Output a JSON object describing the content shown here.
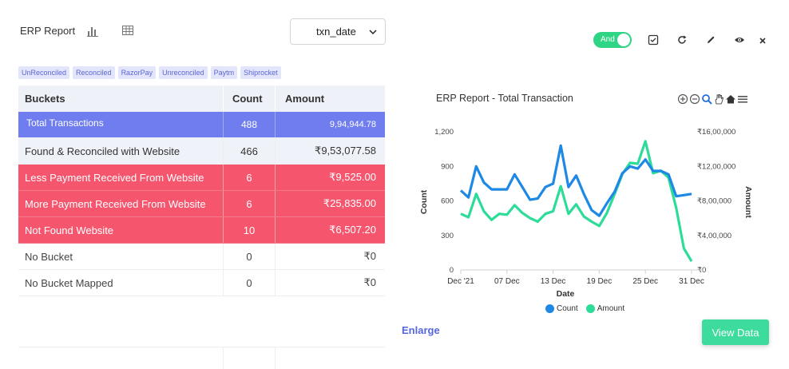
{
  "header": {
    "title": "ERP Report",
    "select_value": "txn_date"
  },
  "tags": [
    "UnReconciled",
    "Reconciled",
    "RazorPay",
    "Unreconciled",
    "Paytm",
    "Shiprocket"
  ],
  "table": {
    "headers": [
      "Buckets",
      "Count",
      "Amount"
    ],
    "rows": [
      {
        "bucket": "Total  Transactions",
        "count": "488",
        "amount": "9,94,944.78",
        "style": "total"
      },
      {
        "bucket": "Found & Reconciled with Website",
        "count": "466",
        "amount": "₹9,53,077.58",
        "style": "light"
      },
      {
        "bucket": "Less Payment Received From Website",
        "count": "6",
        "amount": "₹9,525.00",
        "style": "red"
      },
      {
        "bucket": "More Payment Received From Website",
        "count": "6",
        "amount": "₹25,835.00",
        "style": "red"
      },
      {
        "bucket": "Not Found Website",
        "count": "10",
        "amount": "₹6,507.20",
        "style": "red"
      },
      {
        "bucket": "No Bucket",
        "count": "0",
        "amount": "₹0",
        "style": "plain"
      },
      {
        "bucket": "No Bucket Mapped",
        "count": "0",
        "amount": "₹0",
        "style": "plain"
      }
    ]
  },
  "actions": {
    "enlarge": "Enlarge",
    "view_data": "View Data"
  },
  "toolbar": {
    "toggle_label": "And"
  },
  "colors": {
    "count": "#1e88e5",
    "amount": "#2ddc98",
    "total_row": "#6f7dee",
    "red_row": "#f5566e"
  },
  "chart_data": {
    "type": "line",
    "title": "ERP Report - Total Transaction",
    "xlabel": "Date",
    "ylabel": "Count",
    "y2label": "Amount",
    "x_ticks": [
      "Dec '21",
      "07 Dec",
      "13 Dec",
      "19 Dec",
      "25 Dec",
      "31 Dec"
    ],
    "y_ticks": [
      "0",
      "300",
      "600",
      "900",
      "1,200"
    ],
    "y2_ticks": [
      "₹0",
      "₹4,00,000",
      "₹8,00,000",
      "₹12,00,000",
      "₹16,00,000"
    ],
    "ylim": [
      0,
      1200
    ],
    "y2lim": [
      0,
      1600000
    ],
    "days": [
      "01 Dec",
      "02 Dec",
      "03 Dec",
      "04 Dec",
      "05 Dec",
      "06 Dec",
      "07 Dec",
      "08 Dec",
      "09 Dec",
      "10 Dec",
      "11 Dec",
      "12 Dec",
      "13 Dec",
      "14 Dec",
      "15 Dec",
      "16 Dec",
      "17 Dec",
      "18 Dec",
      "19 Dec",
      "20 Dec",
      "21 Dec",
      "22 Dec",
      "23 Dec",
      "24 Dec",
      "25 Dec",
      "26 Dec",
      "27 Dec",
      "28 Dec",
      "29 Dec",
      "30 Dec",
      "31 Dec"
    ],
    "series": [
      {
        "name": "Count",
        "axis": "left",
        "values": [
          690,
          630,
          900,
          760,
          700,
          700,
          700,
          830,
          720,
          610,
          620,
          720,
          750,
          1080,
          720,
          820,
          660,
          520,
          470,
          580,
          680,
          840,
          900,
          880,
          960,
          860,
          860,
          830,
          640,
          650,
          660
        ]
      },
      {
        "name": "Amount",
        "axis": "right",
        "values": [
          650000,
          610000,
          880000,
          680000,
          580000,
          650000,
          640000,
          750000,
          660000,
          600000,
          560000,
          650000,
          680000,
          970000,
          650000,
          760000,
          620000,
          560000,
          510000,
          660000,
          880000,
          1110000,
          1240000,
          1230000,
          1490000,
          1120000,
          1150000,
          1070000,
          720000,
          250000,
          100000
        ]
      }
    ],
    "legend": "bottom",
    "grid": false
  }
}
